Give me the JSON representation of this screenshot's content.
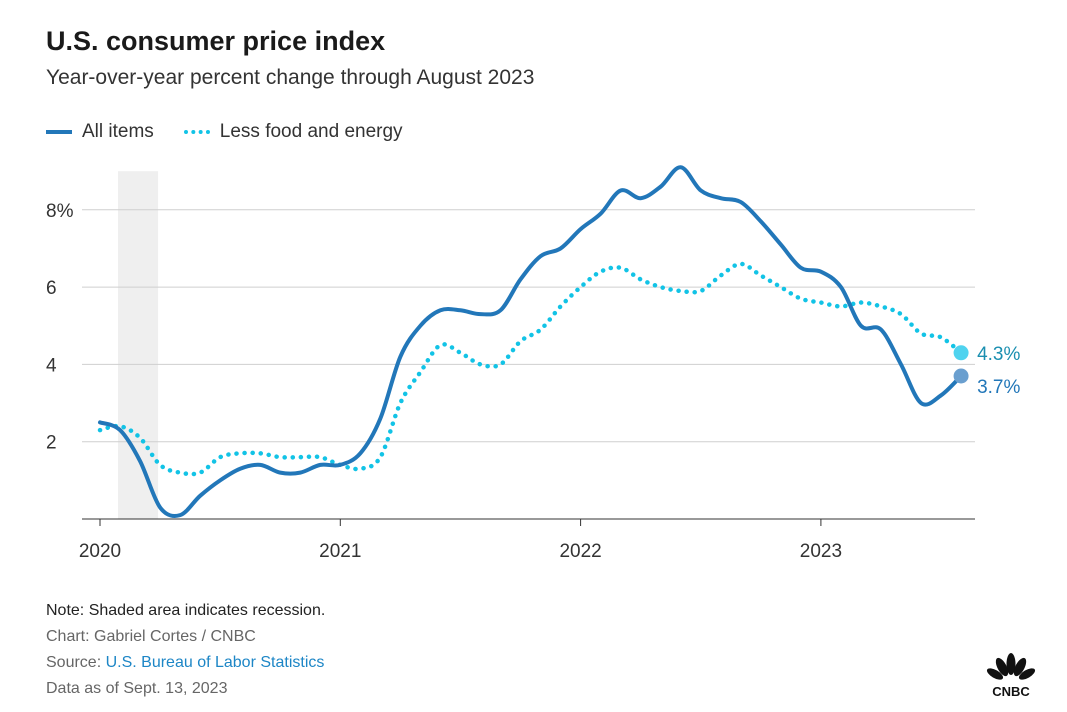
{
  "title": "U.S. consumer price index",
  "subtitle": "Year-over-year percent change through August 2023",
  "legend": [
    {
      "label": "All items",
      "style": "solid",
      "color": "#2277b9"
    },
    {
      "label": "Less food and energy",
      "style": "dotted",
      "color": "#12c3e6"
    }
  ],
  "chart_data": {
    "type": "line",
    "title": "U.S. consumer price index",
    "subtitle": "Year-over-year percent change through August 2023",
    "x_start": "2020-01",
    "x_end": "2023-08",
    "x_frequency": "monthly",
    "x_ticks": [
      "2020",
      "2021",
      "2022",
      "2023"
    ],
    "y_ticks": [
      "2",
      "4",
      "6",
      "8%"
    ],
    "ylim": [
      0,
      9
    ],
    "grid": "horizontal",
    "recession_shading": {
      "start": "2020-02",
      "end": "2020-04"
    },
    "series": [
      {
        "name": "All items",
        "color": "#2277b9",
        "style": "solid",
        "values": [
          2.5,
          2.3,
          1.5,
          0.3,
          0.1,
          0.6,
          1.0,
          1.3,
          1.4,
          1.2,
          1.2,
          1.4,
          1.4,
          1.7,
          2.6,
          4.2,
          5.0,
          5.4,
          5.4,
          5.3,
          5.4,
          6.2,
          6.8,
          7.0,
          7.5,
          7.9,
          8.5,
          8.3,
          8.6,
          9.1,
          8.5,
          8.3,
          8.2,
          7.7,
          7.1,
          6.5,
          6.4,
          6.0,
          5.0,
          4.9,
          4.0,
          3.0,
          3.2,
          3.7
        ],
        "end_label": "3.7%"
      },
      {
        "name": "Less food and energy",
        "color": "#12c3e6",
        "style": "dotted",
        "values": [
          2.3,
          2.4,
          2.1,
          1.4,
          1.2,
          1.2,
          1.6,
          1.7,
          1.7,
          1.6,
          1.6,
          1.6,
          1.4,
          1.3,
          1.6,
          3.0,
          3.8,
          4.5,
          4.3,
          4.0,
          4.0,
          4.6,
          4.9,
          5.5,
          6.0,
          6.4,
          6.5,
          6.2,
          6.0,
          5.9,
          5.9,
          6.3,
          6.6,
          6.3,
          6.0,
          5.7,
          5.6,
          5.5,
          5.6,
          5.5,
          5.3,
          4.8,
          4.7,
          4.3
        ],
        "end_label": "4.3%"
      }
    ]
  },
  "footer": {
    "note": "Note: Shaded area indicates recession.",
    "chart_credit": "Chart: Gabriel Cortes / CNBC",
    "source_prefix": "Source: ",
    "source_link": "U.S. Bureau of Labor Statistics",
    "data_as_of": "Data as of Sept. 13, 2023"
  },
  "logo": "CNBC"
}
